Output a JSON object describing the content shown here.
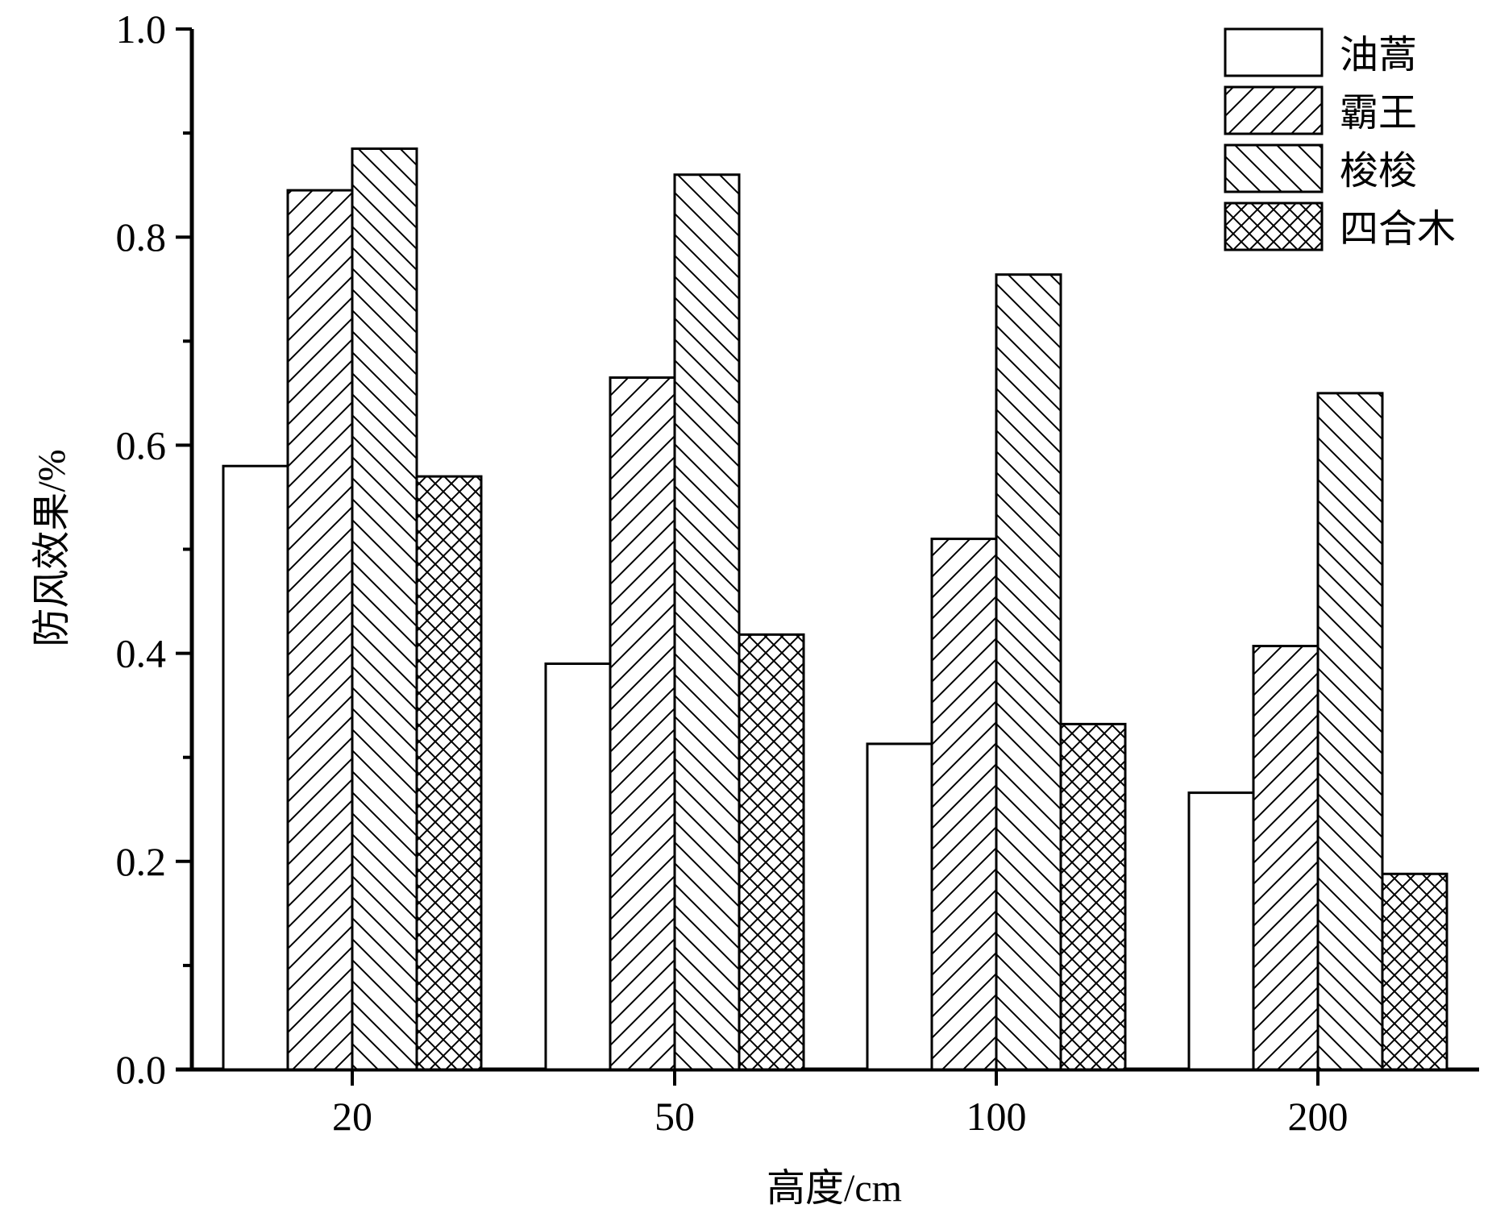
{
  "chart_data": {
    "type": "bar",
    "xlabel": "高度/cm",
    "ylabel": "防风效果/%",
    "categories": [
      "20",
      "50",
      "100",
      "200"
    ],
    "ylim": [
      0,
      1.0
    ],
    "yticks": [
      "0.0",
      "0.2",
      "0.4",
      "0.6",
      "0.8",
      "1.0"
    ],
    "grid": false,
    "legend_position": "top-right",
    "series": [
      {
        "name": "油蒿",
        "pattern": "blank",
        "values": [
          0.58,
          0.39,
          0.313,
          0.266
        ]
      },
      {
        "name": "霸王",
        "pattern": "forward-hatch",
        "values": [
          0.845,
          0.665,
          0.51,
          0.407
        ]
      },
      {
        "name": "梭梭",
        "pattern": "back-hatch",
        "values": [
          0.885,
          0.86,
          0.764,
          0.65
        ]
      },
      {
        "name": "四合木",
        "pattern": "cross-hatch",
        "values": [
          0.57,
          0.418,
          0.332,
          0.188
        ]
      }
    ],
    "colors": {
      "stroke": "#000000",
      "fill": "#ffffff"
    }
  }
}
